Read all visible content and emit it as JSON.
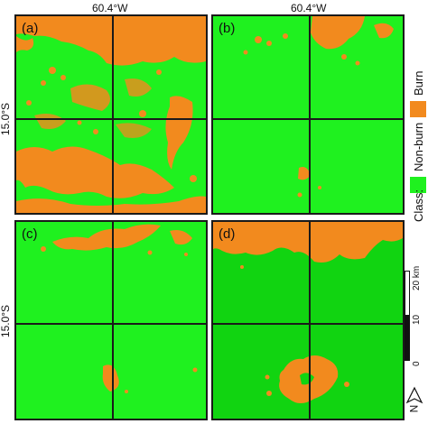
{
  "coords": {
    "lon_label": "60.4°W",
    "lat_label": "15.0°S"
  },
  "panels": [
    {
      "label": "(a)",
      "scene": "Sentinel burned-area map a"
    },
    {
      "label": "(b)",
      "scene": "Sentinel burned-area map b"
    },
    {
      "label": "(c)",
      "scene": "Sentinel burned-area map c"
    },
    {
      "label": "(d)",
      "scene": "Sentinel burned-area map d"
    }
  ],
  "legend": {
    "title": "Class:",
    "items": [
      {
        "label": "Burn",
        "color": "#f28a1e"
      },
      {
        "label": "Non-burn",
        "color": "#1ff11f"
      }
    ]
  },
  "scalebar": {
    "ticks": [
      "0",
      "10",
      "20 km"
    ]
  },
  "north_arrow": {
    "letter": "N",
    "icon": "north-arrow-icon"
  },
  "colors": {
    "burn": "#f28a1e",
    "non_burn_bright": "#1ff11f",
    "non_burn_dark": "#11d411",
    "frame": "#1a1a1a"
  }
}
